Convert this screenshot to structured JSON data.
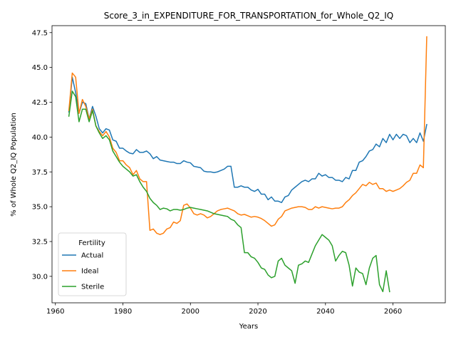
{
  "chart_data": {
    "type": "line",
    "title": "Score_3_in_EXPENDITURE_FOR_TRANSPORTATION_for_Whole_Q2_IQ",
    "xlabel": "Years",
    "ylabel": "% of Whole Q2_IQ Population",
    "xlim": [
      1959,
      2075.5
    ],
    "ylim": [
      28.1,
      48.0
    ],
    "xticks": [
      1960,
      1980,
      2000,
      2020,
      2040,
      2060
    ],
    "yticks": [
      30.0,
      32.5,
      35.0,
      37.5,
      40.0,
      42.5,
      45.0,
      47.5
    ],
    "xtick_labels": [
      "1960",
      "1980",
      "2000",
      "2020",
      "2040",
      "2060"
    ],
    "ytick_labels": [
      "30.0",
      "32.5",
      "35.0",
      "37.5",
      "40.0",
      "42.5",
      "45.0",
      "47.5"
    ],
    "grid": false,
    "legend": {
      "title": "Fertility",
      "position": "lower-left"
    },
    "series": [
      {
        "name": "Actual",
        "color": "#1f77b4",
        "x": [
          1964,
          1965,
          1966,
          1967,
          1968,
          1969,
          1970,
          1971,
          1972,
          1973,
          1974,
          1975,
          1976,
          1977,
          1978,
          1979,
          1980,
          1981,
          1982,
          1983,
          1984,
          1985,
          1986,
          1987,
          1988,
          1989,
          1990,
          1991,
          1992,
          1993,
          1994,
          1995,
          1996,
          1997,
          1998,
          1999,
          2000,
          2001,
          2002,
          2003,
          2004,
          2005,
          2006,
          2007,
          2008,
          2009,
          2010,
          2011,
          2012,
          2013,
          2014,
          2015,
          2016,
          2017,
          2018,
          2019,
          2020,
          2021,
          2022,
          2023,
          2024,
          2025,
          2026,
          2027,
          2028,
          2029,
          2030,
          2031,
          2032,
          2033,
          2034,
          2035,
          2036,
          2037,
          2038,
          2039,
          2040,
          2041,
          2042,
          2043,
          2044,
          2045,
          2046,
          2047,
          2048,
          2049,
          2050,
          2051,
          2052,
          2053,
          2054,
          2055,
          2056,
          2057,
          2058,
          2059,
          2060,
          2061,
          2062,
          2063,
          2064,
          2065,
          2066,
          2067,
          2068,
          2069,
          2070
        ],
        "y": [
          41.8,
          44.3,
          43.2,
          41.7,
          42.5,
          42.4,
          41.3,
          42.2,
          41.5,
          40.6,
          40.3,
          40.6,
          40.5,
          39.8,
          39.7,
          39.2,
          39.2,
          39.0,
          38.85,
          38.8,
          39.1,
          38.9,
          38.9,
          39.0,
          38.8,
          38.45,
          38.6,
          38.35,
          38.3,
          38.25,
          38.2,
          38.2,
          38.1,
          38.1,
          38.3,
          38.2,
          38.15,
          37.9,
          37.85,
          37.8,
          37.55,
          37.5,
          37.5,
          37.45,
          37.5,
          37.6,
          37.7,
          37.9,
          37.9,
          36.4,
          36.4,
          36.5,
          36.4,
          36.4,
          36.2,
          36.1,
          36.25,
          35.9,
          35.9,
          35.5,
          35.7,
          35.4,
          35.4,
          35.3,
          35.7,
          35.8,
          36.2,
          36.4,
          36.6,
          36.8,
          36.9,
          36.8,
          37.0,
          37.0,
          37.4,
          37.2,
          37.3,
          37.1,
          37.1,
          36.9,
          36.9,
          36.8,
          37.1,
          37.0,
          37.6,
          37.6,
          38.2,
          38.3,
          38.6,
          39.0,
          39.1,
          39.5,
          39.3,
          39.9,
          39.6,
          40.2,
          39.8,
          40.2,
          39.9,
          40.2,
          40.1,
          39.6,
          39.9,
          39.6,
          40.3,
          39.7,
          40.9
        ]
      },
      {
        "name": "Ideal",
        "color": "#ff7f0e",
        "x": [
          1964,
          1965,
          1966,
          1967,
          1968,
          1969,
          1970,
          1971,
          1972,
          1973,
          1974,
          1975,
          1976,
          1977,
          1978,
          1979,
          1980,
          1981,
          1982,
          1983,
          1984,
          1985,
          1986,
          1987,
          1988,
          1989,
          1990,
          1991,
          1992,
          1993,
          1994,
          1995,
          1996,
          1997,
          1998,
          1999,
          2000,
          2001,
          2002,
          2003,
          2004,
          2005,
          2006,
          2007,
          2008,
          2009,
          2010,
          2011,
          2012,
          2013,
          2014,
          2015,
          2016,
          2017,
          2018,
          2019,
          2020,
          2021,
          2022,
          2023,
          2024,
          2025,
          2026,
          2027,
          2028,
          2029,
          2030,
          2031,
          2032,
          2033,
          2034,
          2035,
          2036,
          2037,
          2038,
          2039,
          2040,
          2041,
          2042,
          2043,
          2044,
          2045,
          2046,
          2047,
          2048,
          2049,
          2050,
          2051,
          2052,
          2053,
          2054,
          2055,
          2056,
          2057,
          2058,
          2059,
          2060,
          2061,
          2062,
          2063,
          2064,
          2065,
          2066,
          2067,
          2068,
          2069,
          2070
        ],
        "y": [
          41.9,
          44.6,
          44.3,
          41.7,
          42.7,
          42.2,
          41.3,
          42.0,
          40.8,
          40.4,
          40.1,
          40.4,
          40.0,
          39.2,
          38.9,
          38.3,
          38.3,
          38.0,
          37.8,
          37.3,
          37.6,
          37.0,
          36.8,
          36.8,
          33.3,
          33.4,
          33.1,
          33.0,
          33.1,
          33.4,
          33.5,
          33.9,
          33.8,
          34.0,
          35.1,
          35.2,
          34.9,
          34.5,
          34.4,
          34.5,
          34.4,
          34.2,
          34.3,
          34.5,
          34.7,
          34.8,
          34.85,
          34.9,
          34.8,
          34.7,
          34.5,
          34.4,
          34.45,
          34.35,
          34.25,
          34.3,
          34.25,
          34.15,
          34.0,
          33.8,
          33.6,
          33.7,
          34.1,
          34.3,
          34.7,
          34.8,
          34.9,
          34.95,
          35.0,
          35.0,
          34.95,
          34.8,
          34.8,
          35.0,
          34.9,
          35.0,
          34.95,
          34.9,
          34.85,
          34.9,
          34.9,
          35.0,
          35.3,
          35.5,
          35.8,
          36.0,
          36.3,
          36.6,
          36.5,
          36.75,
          36.6,
          36.7,
          36.3,
          36.3,
          36.1,
          36.2,
          36.1,
          36.2,
          36.3,
          36.5,
          36.75,
          36.9,
          37.4,
          37.4,
          38.0,
          37.8,
          47.2
        ]
      },
      {
        "name": "Sterile",
        "color": "#2ca02c",
        "x": [
          1964,
          1965,
          1966,
          1967,
          1968,
          1969,
          1970,
          1971,
          1972,
          1973,
          1974,
          1975,
          1976,
          1977,
          1978,
          1979,
          1980,
          1981,
          1982,
          1983,
          1984,
          1985,
          1986,
          1987,
          1988,
          1989,
          1990,
          1991,
          1992,
          1993,
          1994,
          1995,
          1996,
          1997,
          1998,
          1999,
          2000,
          2001,
          2002,
          2003,
          2004,
          2005,
          2006,
          2007,
          2008,
          2009,
          2010,
          2011,
          2012,
          2013,
          2014,
          2015,
          2016,
          2017,
          2018,
          2019,
          2020,
          2021,
          2022,
          2023,
          2024,
          2025,
          2026,
          2027,
          2028,
          2029,
          2030,
          2031,
          2032,
          2033,
          2034,
          2035,
          2036,
          2037,
          2038,
          2039,
          2040,
          2041,
          2042,
          2043,
          2044,
          2045,
          2046,
          2047,
          2048,
          2049,
          2050,
          2051,
          2052,
          2053,
          2054,
          2055,
          2056,
          2057,
          2058,
          2059
        ],
        "y": [
          41.5,
          43.3,
          42.9,
          41.1,
          42.0,
          42.0,
          41.1,
          41.9,
          40.8,
          40.3,
          39.9,
          40.1,
          39.8,
          39.0,
          38.6,
          38.2,
          37.9,
          37.7,
          37.5,
          37.2,
          37.3,
          36.8,
          36.4,
          36.1,
          35.6,
          35.3,
          35.1,
          34.8,
          34.9,
          34.85,
          34.7,
          34.8,
          34.8,
          34.75,
          34.8,
          34.9,
          34.95,
          34.9,
          34.85,
          34.8,
          34.75,
          34.7,
          34.6,
          34.5,
          34.45,
          34.4,
          34.35,
          34.3,
          34.1,
          34.0,
          33.7,
          33.5,
          31.7,
          31.7,
          31.4,
          31.3,
          31.0,
          30.6,
          30.5,
          30.1,
          29.9,
          30.0,
          31.1,
          31.3,
          30.8,
          30.6,
          30.4,
          29.5,
          30.8,
          30.9,
          31.1,
          31.0,
          31.6,
          32.2,
          32.6,
          33.0,
          32.8,
          32.6,
          32.2,
          31.1,
          31.5,
          31.8,
          31.7,
          30.8,
          29.3,
          30.6,
          30.3,
          30.2,
          29.4,
          30.6,
          31.3,
          31.5,
          29.4,
          28.9,
          30.4,
          28.9
        ]
      }
    ]
  }
}
